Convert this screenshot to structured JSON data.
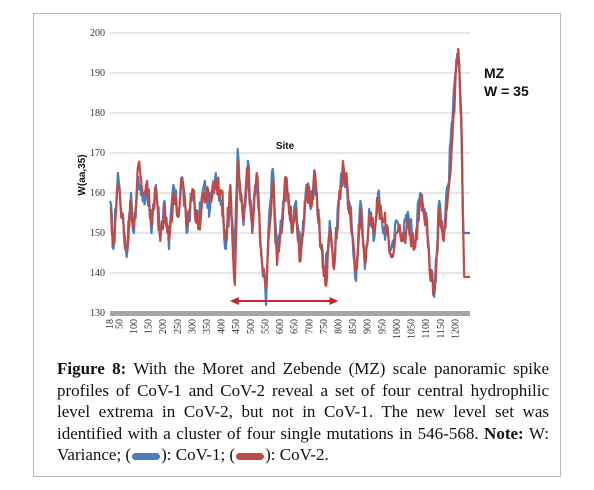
{
  "chart_data": {
    "type": "line",
    "xlabel": "Site",
    "ylabel": "W(aa,35)",
    "ylim": [
      130,
      200
    ],
    "y_ticks": [
      "130",
      "140",
      "150",
      "160",
      "170",
      "180",
      "190",
      "200"
    ],
    "x_range": [
      18,
      1250
    ],
    "x_ticks": [
      "18",
      "50",
      "100",
      "150",
      "200",
      "250",
      "300",
      "350",
      "400",
      "450",
      "500",
      "550",
      "600",
      "650",
      "700",
      "750",
      "800",
      "850",
      "900",
      "950",
      "1000",
      "1050",
      "1100",
      "1150",
      "1200"
    ],
    "grid": "horizontal",
    "annotation_lines": [
      "MZ",
      "W = 35"
    ],
    "highlight_range": [
      428,
      800
    ],
    "series": [
      {
        "color": "#4a7ebb",
        "x": [
          18,
          30,
          45,
          60,
          75,
          90,
          100,
          115,
          130,
          145,
          160,
          175,
          190,
          205,
          220,
          235,
          250,
          265,
          280,
          300,
          320,
          340,
          360,
          380,
          400,
          415,
          430,
          445,
          455,
          465,
          475,
          490,
          505,
          520,
          535,
          545,
          552,
          560,
          575,
          590,
          605,
          620,
          640,
          655,
          670,
          690,
          705,
          720,
          740,
          755,
          770,
          785,
          800,
          815,
          830,
          845,
          860,
          875,
          890,
          905,
          920,
          935,
          950,
          965,
          980,
          1000,
          1020,
          1040,
          1060,
          1080,
          1100,
          1115,
          1130,
          1145,
          1160,
          1175,
          1190,
          1200,
          1210,
          1220,
          1225,
          1230,
          1240,
          1250
        ],
        "values": [
          158,
          146,
          165,
          154,
          144,
          160,
          150,
          164,
          158,
          162,
          150,
          162,
          150,
          158,
          146,
          162,
          155,
          164,
          150,
          160,
          152,
          162,
          156,
          165,
          158,
          146,
          160,
          145,
          171,
          158,
          152,
          168,
          152,
          164,
          145,
          140,
          132,
          150,
          166,
          144,
          152,
          163,
          150,
          158,
          145,
          162,
          156,
          164,
          146,
          140,
          153,
          142,
          158,
          166,
          160,
          152,
          138,
          158,
          141,
          156,
          148,
          160,
          152,
          150,
          146,
          153,
          150,
          154,
          148,
          160,
          155,
          140,
          136,
          158,
          150,
          162,
          178,
          190,
          194,
          178,
          157,
          150,
          150,
          150
        ]
      },
      {
        "color": "#be4b48",
        "x": [
          18,
          30,
          45,
          60,
          75,
          90,
          100,
          115,
          130,
          145,
          160,
          175,
          190,
          205,
          220,
          235,
          250,
          265,
          280,
          300,
          320,
          340,
          360,
          380,
          400,
          415,
          430,
          445,
          455,
          465,
          475,
          490,
          505,
          520,
          535,
          545,
          552,
          560,
          575,
          590,
          605,
          620,
          640,
          655,
          670,
          690,
          705,
          720,
          740,
          755,
          770,
          785,
          800,
          815,
          830,
          845,
          860,
          875,
          890,
          905,
          920,
          935,
          950,
          965,
          980,
          1000,
          1020,
          1040,
          1060,
          1080,
          1100,
          1115,
          1130,
          1145,
          1160,
          1175,
          1190,
          1200,
          1210,
          1220,
          1225,
          1230,
          1240,
          1250
        ],
        "values": [
          156,
          147,
          162,
          155,
          146,
          158,
          152,
          167,
          160,
          163,
          152,
          161,
          148,
          157,
          148,
          160,
          154,
          163,
          152,
          161,
          151,
          160,
          158,
          163,
          160,
          148,
          162,
          137,
          168,
          160,
          153,
          166,
          150,
          165,
          146,
          141,
          136,
          148,
          163,
          142,
          150,
          164,
          152,
          156,
          143,
          160,
          158,
          165,
          147,
          137,
          150,
          141,
          156,
          168,
          162,
          150,
          141,
          156,
          143,
          154,
          150,
          158,
          153,
          152,
          144,
          150,
          148,
          152,
          146,
          158,
          154,
          138,
          137,
          156,
          148,
          160,
          174,
          188,
          196,
          180,
          158,
          139,
          139,
          139
        ]
      }
    ]
  },
  "caption": {
    "figure_label": "Figure 8:",
    "text": " With the Moret and Zebende (MZ) scale panoramic spike profiles of CoV-1 and CoV-2 reveal a set of four central hydrophilic level extrema in CoV-2, but not in CoV-1.  The new level set was identified with a cluster of four single mutations in 546-568. ",
    "note_label": "Note:",
    "note_text": " W: Variance; (",
    "legend_cov1": "): CoV-1; (",
    "legend_cov2": "): CoV-2.",
    "cov1_color": "#4a7ebb",
    "cov2_color": "#be4b48"
  }
}
